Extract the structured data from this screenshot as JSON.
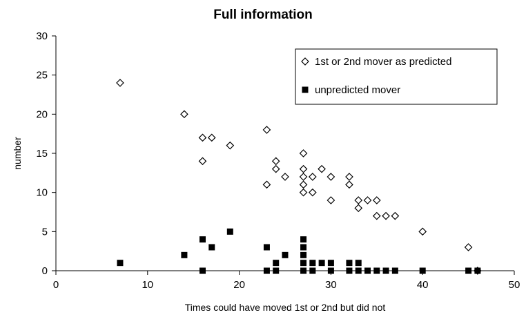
{
  "chart_data": {
    "type": "scatter",
    "title": "Full information",
    "xlabel": "Times could have moved 1st or 2nd but did not",
    "ylabel": "number",
    "xlim": [
      0,
      50
    ],
    "ylim": [
      0,
      30
    ],
    "x_ticks": [
      0,
      10,
      20,
      30,
      40,
      50
    ],
    "y_ticks": [
      0,
      5,
      10,
      15,
      20,
      25,
      30
    ],
    "grid": false,
    "legend_position": "top-right",
    "series": [
      {
        "name": "1st or 2nd mover as predicted",
        "marker": "open-diamond",
        "color": "#000000",
        "points": [
          [
            7,
            24
          ],
          [
            14,
            20
          ],
          [
            16,
            17
          ],
          [
            16,
            14
          ],
          [
            17,
            17
          ],
          [
            19,
            16
          ],
          [
            23,
            18
          ],
          [
            23,
            11
          ],
          [
            24,
            14
          ],
          [
            24,
            13
          ],
          [
            25,
            12
          ],
          [
            27,
            15
          ],
          [
            27,
            13
          ],
          [
            27,
            12
          ],
          [
            27,
            11
          ],
          [
            27,
            10
          ],
          [
            28,
            12
          ],
          [
            28,
            10
          ],
          [
            29,
            13
          ],
          [
            30,
            12
          ],
          [
            30,
            9
          ],
          [
            32,
            12
          ],
          [
            32,
            11
          ],
          [
            33,
            9
          ],
          [
            33,
            8
          ],
          [
            34,
            9
          ],
          [
            35,
            9
          ],
          [
            35,
            7
          ],
          [
            36,
            7
          ],
          [
            37,
            7
          ],
          [
            40,
            5
          ],
          [
            45,
            3
          ],
          [
            46,
            0
          ]
        ]
      },
      {
        "name": "unpredicted mover",
        "marker": "filled-square",
        "color": "#000000",
        "points": [
          [
            7,
            1
          ],
          [
            14,
            2
          ],
          [
            16,
            4
          ],
          [
            16,
            0
          ],
          [
            17,
            3
          ],
          [
            19,
            5
          ],
          [
            23,
            3
          ],
          [
            23,
            0
          ],
          [
            24,
            1
          ],
          [
            24,
            0
          ],
          [
            25,
            2
          ],
          [
            27,
            4
          ],
          [
            27,
            3
          ],
          [
            27,
            2
          ],
          [
            27,
            1
          ],
          [
            27,
            0
          ],
          [
            28,
            1
          ],
          [
            28,
            0
          ],
          [
            29,
            1
          ],
          [
            30,
            1
          ],
          [
            30,
            0
          ],
          [
            32,
            1
          ],
          [
            32,
            0
          ],
          [
            33,
            1
          ],
          [
            33,
            0
          ],
          [
            34,
            0
          ],
          [
            35,
            0
          ],
          [
            36,
            0
          ],
          [
            37,
            0
          ],
          [
            40,
            0
          ],
          [
            45,
            0
          ],
          [
            46,
            0
          ]
        ]
      }
    ]
  }
}
